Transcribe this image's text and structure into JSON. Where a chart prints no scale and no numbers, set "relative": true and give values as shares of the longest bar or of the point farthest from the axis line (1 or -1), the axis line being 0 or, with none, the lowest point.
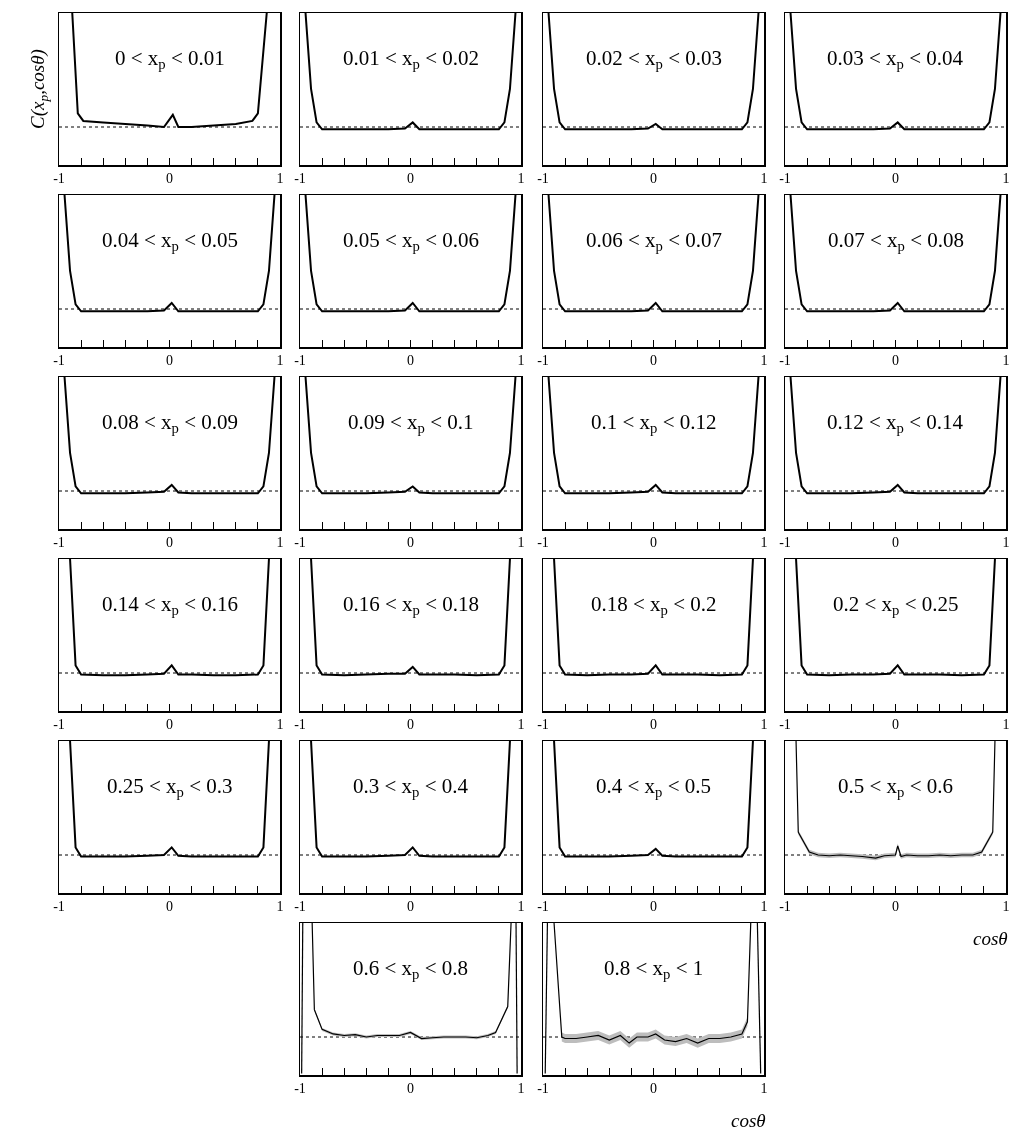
{
  "chart_data": [
    {
      "type": "line",
      "relative": true,
      "ylabel": "C(x$_{p}$,cosθ)",
      "annotations": [
        "0 < x$_{p}$ < 0.01"
      ],
      "x": [
        -0.88,
        -0.83,
        -0.78,
        -0.6,
        -0.4,
        -0.2,
        -0.05,
        0.03,
        0.08,
        0.2,
        0.4,
        0.6,
        0.75,
        0.8,
        0.88
      ],
      "series": [
        {
          "color": "#000000",
          "values": [
            1,
            0.34,
            0.29,
            0.28,
            0.27,
            0.26,
            0.25,
            0.33,
            0.25,
            0.25,
            0.26,
            0.27,
            0.29,
            0.34,
            1
          ]
        }
      ],
      "xlim": [
        -1,
        1
      ],
      "xticks": [
        -1,
        {
          "value": -0.8,
          "label": null
        },
        {
          "value": -0.6,
          "label": null
        },
        {
          "value": -0.4,
          "label": null
        },
        {
          "value": -0.2,
          "label": null
        },
        0,
        {
          "value": 0.2,
          "label": null
        },
        {
          "value": 0.4,
          "label": null
        },
        {
          "value": 0.6,
          "label": null
        },
        {
          "value": 0.8,
          "label": null
        },
        1
      ],
      "tick_labels": "x",
      "ref_lines": [
        {
          "axis": "y",
          "value": 0.25,
          "line_style": "dotted",
          "color": "#000000"
        }
      ]
    },
    {
      "type": "line",
      "relative": true,
      "annotations": [
        "0.01 < x$_{p}$ < 0.02"
      ],
      "x": [
        -0.95,
        -0.9,
        -0.85,
        -0.8,
        -0.6,
        -0.4,
        -0.2,
        -0.05,
        0.02,
        0.08,
        0.2,
        0.4,
        0.6,
        0.8,
        0.85,
        0.9,
        0.95
      ],
      "series": [
        {
          "color": "#000000",
          "values": [
            1,
            0.5,
            0.28,
            0.235,
            0.235,
            0.235,
            0.235,
            0.24,
            0.28,
            0.235,
            0.235,
            0.235,
            0.235,
            0.235,
            0.28,
            0.5,
            1
          ]
        }
      ],
      "xlim": [
        -1,
        1
      ],
      "xticks": [
        -1,
        {
          "value": -0.8,
          "label": null
        },
        {
          "value": -0.6,
          "label": null
        },
        {
          "value": -0.4,
          "label": null
        },
        {
          "value": -0.2,
          "label": null
        },
        0,
        {
          "value": 0.2,
          "label": null
        },
        {
          "value": 0.4,
          "label": null
        },
        {
          "value": 0.6,
          "label": null
        },
        {
          "value": 0.8,
          "label": null
        },
        1
      ],
      "tick_labels": "x",
      "ref_lines": [
        {
          "axis": "y",
          "value": 0.25,
          "line_style": "dotted",
          "color": "#000000"
        }
      ]
    },
    {
      "type": "line",
      "relative": true,
      "annotations": [
        "0.02 < x$_{p}$ < 0.03"
      ],
      "x": [
        -0.95,
        -0.9,
        -0.85,
        -0.8,
        -0.6,
        -0.4,
        -0.2,
        -0.05,
        0.02,
        0.08,
        0.2,
        0.4,
        0.6,
        0.8,
        0.85,
        0.9,
        0.95
      ],
      "series": [
        {
          "color": "#000000",
          "values": [
            1,
            0.5,
            0.28,
            0.235,
            0.235,
            0.235,
            0.235,
            0.24,
            0.27,
            0.235,
            0.235,
            0.235,
            0.235,
            0.235,
            0.28,
            0.5,
            1
          ]
        }
      ],
      "xlim": [
        -1,
        1
      ],
      "xticks": [
        -1,
        {
          "value": -0.8,
          "label": null
        },
        {
          "value": -0.6,
          "label": null
        },
        {
          "value": -0.4,
          "label": null
        },
        {
          "value": -0.2,
          "label": null
        },
        0,
        {
          "value": 0.2,
          "label": null
        },
        {
          "value": 0.4,
          "label": null
        },
        {
          "value": 0.6,
          "label": null
        },
        {
          "value": 0.8,
          "label": null
        },
        1
      ],
      "tick_labels": "x",
      "ref_lines": [
        {
          "axis": "y",
          "value": 0.25,
          "line_style": "dotted",
          "color": "#000000"
        }
      ]
    },
    {
      "type": "line",
      "relative": true,
      "annotations": [
        "0.03 < x$_{p}$ < 0.04"
      ],
      "x": [
        -0.95,
        -0.9,
        -0.85,
        -0.8,
        -0.6,
        -0.4,
        -0.2,
        -0.05,
        0.02,
        0.08,
        0.2,
        0.4,
        0.6,
        0.8,
        0.85,
        0.9,
        0.95
      ],
      "series": [
        {
          "color": "#000000",
          "values": [
            1,
            0.5,
            0.28,
            0.235,
            0.235,
            0.235,
            0.235,
            0.24,
            0.28,
            0.235,
            0.235,
            0.235,
            0.235,
            0.235,
            0.28,
            0.5,
            1
          ]
        }
      ],
      "xlim": [
        -1,
        1
      ],
      "xticks": [
        -1,
        {
          "value": -0.8,
          "label": null
        },
        {
          "value": -0.6,
          "label": null
        },
        {
          "value": -0.4,
          "label": null
        },
        {
          "value": -0.2,
          "label": null
        },
        0,
        {
          "value": 0.2,
          "label": null
        },
        {
          "value": 0.4,
          "label": null
        },
        {
          "value": 0.6,
          "label": null
        },
        {
          "value": 0.8,
          "label": null
        },
        1
      ],
      "tick_labels": "x",
      "ref_lines": [
        {
          "axis": "y",
          "value": 0.25,
          "line_style": "dotted",
          "color": "#000000"
        }
      ]
    },
    {
      "type": "line",
      "relative": true,
      "annotations": [
        "0.04 < x$_{p}$ < 0.05"
      ],
      "x": [
        -0.95,
        -0.9,
        -0.85,
        -0.8,
        -0.6,
        -0.4,
        -0.2,
        -0.05,
        0.02,
        0.08,
        0.2,
        0.4,
        0.6,
        0.8,
        0.85,
        0.9,
        0.95
      ],
      "series": [
        {
          "color": "#000000",
          "values": [
            1,
            0.5,
            0.28,
            0.235,
            0.235,
            0.235,
            0.235,
            0.24,
            0.29,
            0.235,
            0.235,
            0.235,
            0.235,
            0.235,
            0.28,
            0.5,
            1
          ]
        }
      ],
      "xlim": [
        -1,
        1
      ],
      "xticks": [
        -1,
        {
          "value": -0.8,
          "label": null
        },
        {
          "value": -0.6,
          "label": null
        },
        {
          "value": -0.4,
          "label": null
        },
        {
          "value": -0.2,
          "label": null
        },
        0,
        {
          "value": 0.2,
          "label": null
        },
        {
          "value": 0.4,
          "label": null
        },
        {
          "value": 0.6,
          "label": null
        },
        {
          "value": 0.8,
          "label": null
        },
        1
      ],
      "tick_labels": "x",
      "ref_lines": [
        {
          "axis": "y",
          "value": 0.25,
          "line_style": "dotted",
          "color": "#000000"
        }
      ]
    },
    {
      "type": "line",
      "relative": true,
      "annotations": [
        "0.05 < x$_{p}$ < 0.06"
      ],
      "x": [
        -0.95,
        -0.9,
        -0.85,
        -0.8,
        -0.6,
        -0.4,
        -0.2,
        -0.05,
        0.02,
        0.08,
        0.2,
        0.4,
        0.6,
        0.8,
        0.85,
        0.9,
        0.95
      ],
      "series": [
        {
          "color": "#000000",
          "values": [
            1,
            0.5,
            0.28,
            0.235,
            0.235,
            0.235,
            0.235,
            0.24,
            0.29,
            0.235,
            0.235,
            0.235,
            0.235,
            0.235,
            0.28,
            0.5,
            1
          ]
        }
      ],
      "xlim": [
        -1,
        1
      ],
      "xticks": [
        -1,
        {
          "value": -0.8,
          "label": null
        },
        {
          "value": -0.6,
          "label": null
        },
        {
          "value": -0.4,
          "label": null
        },
        {
          "value": -0.2,
          "label": null
        },
        0,
        {
          "value": 0.2,
          "label": null
        },
        {
          "value": 0.4,
          "label": null
        },
        {
          "value": 0.6,
          "label": null
        },
        {
          "value": 0.8,
          "label": null
        },
        1
      ],
      "tick_labels": "x",
      "ref_lines": [
        {
          "axis": "y",
          "value": 0.25,
          "line_style": "dotted",
          "color": "#000000"
        }
      ]
    },
    {
      "type": "line",
      "relative": true,
      "annotations": [
        "0.06 < x$_{p}$ < 0.07"
      ],
      "x": [
        -0.95,
        -0.9,
        -0.85,
        -0.8,
        -0.6,
        -0.4,
        -0.2,
        -0.05,
        0.02,
        0.08,
        0.2,
        0.4,
        0.6,
        0.8,
        0.85,
        0.9,
        0.95
      ],
      "series": [
        {
          "color": "#000000",
          "values": [
            1,
            0.5,
            0.28,
            0.235,
            0.235,
            0.235,
            0.235,
            0.24,
            0.29,
            0.235,
            0.235,
            0.235,
            0.235,
            0.235,
            0.28,
            0.5,
            1
          ]
        }
      ],
      "xlim": [
        -1,
        1
      ],
      "xticks": [
        -1,
        {
          "value": -0.8,
          "label": null
        },
        {
          "value": -0.6,
          "label": null
        },
        {
          "value": -0.4,
          "label": null
        },
        {
          "value": -0.2,
          "label": null
        },
        0,
        {
          "value": 0.2,
          "label": null
        },
        {
          "value": 0.4,
          "label": null
        },
        {
          "value": 0.6,
          "label": null
        },
        {
          "value": 0.8,
          "label": null
        },
        1
      ],
      "tick_labels": "x",
      "ref_lines": [
        {
          "axis": "y",
          "value": 0.25,
          "line_style": "dotted",
          "color": "#000000"
        }
      ]
    },
    {
      "type": "line",
      "relative": true,
      "annotations": [
        "0.07 < x$_{p}$ < 0.08"
      ],
      "x": [
        -0.95,
        -0.9,
        -0.85,
        -0.8,
        -0.6,
        -0.4,
        -0.2,
        -0.05,
        0.02,
        0.08,
        0.2,
        0.4,
        0.6,
        0.8,
        0.85,
        0.9,
        0.95
      ],
      "series": [
        {
          "color": "#000000",
          "values": [
            1,
            0.5,
            0.28,
            0.235,
            0.235,
            0.235,
            0.235,
            0.24,
            0.29,
            0.235,
            0.235,
            0.235,
            0.235,
            0.235,
            0.28,
            0.5,
            1
          ]
        }
      ],
      "xlim": [
        -1,
        1
      ],
      "xticks": [
        -1,
        {
          "value": -0.8,
          "label": null
        },
        {
          "value": -0.6,
          "label": null
        },
        {
          "value": -0.4,
          "label": null
        },
        {
          "value": -0.2,
          "label": null
        },
        0,
        {
          "value": 0.2,
          "label": null
        },
        {
          "value": 0.4,
          "label": null
        },
        {
          "value": 0.6,
          "label": null
        },
        {
          "value": 0.8,
          "label": null
        },
        1
      ],
      "tick_labels": "x",
      "ref_lines": [
        {
          "axis": "y",
          "value": 0.25,
          "line_style": "dotted",
          "color": "#000000"
        }
      ]
    },
    {
      "type": "line",
      "relative": true,
      "annotations": [
        "0.08 < x$_{p}$ < 0.09"
      ],
      "x": [
        -0.95,
        -0.9,
        -0.85,
        -0.8,
        -0.6,
        -0.4,
        -0.2,
        -0.05,
        0.02,
        0.08,
        0.2,
        0.4,
        0.6,
        0.8,
        0.85,
        0.9,
        0.95
      ],
      "series": [
        {
          "color": "#000000",
          "values": [
            1,
            0.5,
            0.28,
            0.235,
            0.235,
            0.235,
            0.24,
            0.245,
            0.29,
            0.24,
            0.235,
            0.235,
            0.235,
            0.235,
            0.28,
            0.5,
            1
          ]
        }
      ],
      "xlim": [
        -1,
        1
      ],
      "xticks": [
        -1,
        {
          "value": -0.8,
          "label": null
        },
        {
          "value": -0.6,
          "label": null
        },
        {
          "value": -0.4,
          "label": null
        },
        {
          "value": -0.2,
          "label": null
        },
        0,
        {
          "value": 0.2,
          "label": null
        },
        {
          "value": 0.4,
          "label": null
        },
        {
          "value": 0.6,
          "label": null
        },
        {
          "value": 0.8,
          "label": null
        },
        1
      ],
      "tick_labels": "x",
      "ref_lines": [
        {
          "axis": "y",
          "value": 0.25,
          "line_style": "dotted",
          "color": "#000000"
        }
      ]
    },
    {
      "type": "line",
      "relative": true,
      "annotations": [
        "0.09 < x$_{p}$ < 0.1"
      ],
      "x": [
        -0.95,
        -0.9,
        -0.85,
        -0.8,
        -0.6,
        -0.4,
        -0.2,
        -0.05,
        0.02,
        0.08,
        0.2,
        0.4,
        0.6,
        0.8,
        0.85,
        0.9,
        0.95
      ],
      "series": [
        {
          "color": "#000000",
          "values": [
            1,
            0.5,
            0.28,
            0.235,
            0.235,
            0.235,
            0.24,
            0.245,
            0.28,
            0.24,
            0.235,
            0.235,
            0.235,
            0.235,
            0.28,
            0.5,
            1
          ]
        }
      ],
      "xlim": [
        -1,
        1
      ],
      "xticks": [
        -1,
        {
          "value": -0.8,
          "label": null
        },
        {
          "value": -0.6,
          "label": null
        },
        {
          "value": -0.4,
          "label": null
        },
        {
          "value": -0.2,
          "label": null
        },
        0,
        {
          "value": 0.2,
          "label": null
        },
        {
          "value": 0.4,
          "label": null
        },
        {
          "value": 0.6,
          "label": null
        },
        {
          "value": 0.8,
          "label": null
        },
        1
      ],
      "tick_labels": "x",
      "ref_lines": [
        {
          "axis": "y",
          "value": 0.25,
          "line_style": "dotted",
          "color": "#000000"
        }
      ]
    },
    {
      "type": "line",
      "relative": true,
      "annotations": [
        "0.1 < x$_{p}$ < 0.12"
      ],
      "x": [
        -0.95,
        -0.9,
        -0.85,
        -0.8,
        -0.6,
        -0.4,
        -0.2,
        -0.05,
        0.02,
        0.08,
        0.2,
        0.4,
        0.6,
        0.8,
        0.85,
        0.9,
        0.95
      ],
      "series": [
        {
          "color": "#000000",
          "values": [
            1,
            0.5,
            0.28,
            0.235,
            0.235,
            0.235,
            0.24,
            0.245,
            0.29,
            0.24,
            0.235,
            0.235,
            0.235,
            0.235,
            0.28,
            0.5,
            1
          ]
        }
      ],
      "xlim": [
        -1,
        1
      ],
      "xticks": [
        -1,
        {
          "value": -0.8,
          "label": null
        },
        {
          "value": -0.6,
          "label": null
        },
        {
          "value": -0.4,
          "label": null
        },
        {
          "value": -0.2,
          "label": null
        },
        0,
        {
          "value": 0.2,
          "label": null
        },
        {
          "value": 0.4,
          "label": null
        },
        {
          "value": 0.6,
          "label": null
        },
        {
          "value": 0.8,
          "label": null
        },
        1
      ],
      "tick_labels": "x",
      "ref_lines": [
        {
          "axis": "y",
          "value": 0.25,
          "line_style": "dotted",
          "color": "#000000"
        }
      ]
    },
    {
      "type": "line",
      "relative": true,
      "annotations": [
        "0.12 < x$_{p}$ < 0.14"
      ],
      "x": [
        -0.95,
        -0.9,
        -0.85,
        -0.8,
        -0.6,
        -0.4,
        -0.2,
        -0.05,
        0.02,
        0.08,
        0.2,
        0.4,
        0.6,
        0.8,
        0.85,
        0.9,
        0.95
      ],
      "series": [
        {
          "color": "#000000",
          "values": [
            1,
            0.5,
            0.28,
            0.235,
            0.235,
            0.235,
            0.24,
            0.245,
            0.29,
            0.24,
            0.235,
            0.235,
            0.235,
            0.235,
            0.28,
            0.5,
            1
          ]
        }
      ],
      "xlim": [
        -1,
        1
      ],
      "xticks": [
        -1,
        {
          "value": -0.8,
          "label": null
        },
        {
          "value": -0.6,
          "label": null
        },
        {
          "value": -0.4,
          "label": null
        },
        {
          "value": -0.2,
          "label": null
        },
        0,
        {
          "value": 0.2,
          "label": null
        },
        {
          "value": 0.4,
          "label": null
        },
        {
          "value": 0.6,
          "label": null
        },
        {
          "value": 0.8,
          "label": null
        },
        1
      ],
      "tick_labels": "x",
      "ref_lines": [
        {
          "axis": "y",
          "value": 0.25,
          "line_style": "dotted",
          "color": "#000000"
        }
      ]
    },
    {
      "type": "line",
      "relative": true,
      "annotations": [
        "0.14 < x$_{p}$ < 0.16"
      ],
      "x": [
        -0.9,
        -0.85,
        -0.8,
        -0.6,
        -0.4,
        -0.2,
        -0.05,
        0.02,
        0.08,
        0.2,
        0.4,
        0.6,
        0.8,
        0.85,
        0.9
      ],
      "series": [
        {
          "color": "#000000",
          "values": [
            1,
            0.3,
            0.24,
            0.235,
            0.235,
            0.24,
            0.245,
            0.3,
            0.24,
            0.24,
            0.235,
            0.235,
            0.24,
            0.3,
            1
          ]
        }
      ],
      "xlim": [
        -1,
        1
      ],
      "xticks": [
        -1,
        {
          "value": -0.8,
          "label": null
        },
        {
          "value": -0.6,
          "label": null
        },
        {
          "value": -0.4,
          "label": null
        },
        {
          "value": -0.2,
          "label": null
        },
        0,
        {
          "value": 0.2,
          "label": null
        },
        {
          "value": 0.4,
          "label": null
        },
        {
          "value": 0.6,
          "label": null
        },
        {
          "value": 0.8,
          "label": null
        },
        1
      ],
      "tick_labels": "x",
      "ref_lines": [
        {
          "axis": "y",
          "value": 0.25,
          "line_style": "dotted",
          "color": "#000000"
        }
      ]
    },
    {
      "type": "line",
      "relative": true,
      "annotations": [
        "0.16 < x$_{p}$ < 0.18"
      ],
      "x": [
        -0.9,
        -0.85,
        -0.8,
        -0.6,
        -0.4,
        -0.2,
        -0.05,
        0.02,
        0.08,
        0.2,
        0.4,
        0.6,
        0.8,
        0.85,
        0.9
      ],
      "series": [
        {
          "color": "#000000",
          "values": [
            1,
            0.3,
            0.24,
            0.235,
            0.24,
            0.245,
            0.245,
            0.29,
            0.24,
            0.24,
            0.24,
            0.235,
            0.24,
            0.3,
            1
          ]
        }
      ],
      "xlim": [
        -1,
        1
      ],
      "xticks": [
        -1,
        {
          "value": -0.8,
          "label": null
        },
        {
          "value": -0.6,
          "label": null
        },
        {
          "value": -0.4,
          "label": null
        },
        {
          "value": -0.2,
          "label": null
        },
        0,
        {
          "value": 0.2,
          "label": null
        },
        {
          "value": 0.4,
          "label": null
        },
        {
          "value": 0.6,
          "label": null
        },
        {
          "value": 0.8,
          "label": null
        },
        1
      ],
      "tick_labels": "x",
      "ref_lines": [
        {
          "axis": "y",
          "value": 0.25,
          "line_style": "dotted",
          "color": "#000000"
        }
      ]
    },
    {
      "type": "line",
      "relative": true,
      "annotations": [
        "0.18 < x$_{p}$ < 0.2"
      ],
      "x": [
        -0.9,
        -0.85,
        -0.8,
        -0.6,
        -0.4,
        -0.2,
        -0.05,
        0.02,
        0.08,
        0.2,
        0.4,
        0.6,
        0.8,
        0.85,
        0.9
      ],
      "series": [
        {
          "color": "#000000",
          "values": [
            1,
            0.3,
            0.24,
            0.235,
            0.24,
            0.24,
            0.245,
            0.3,
            0.24,
            0.24,
            0.24,
            0.235,
            0.24,
            0.3,
            1
          ]
        }
      ],
      "xlim": [
        -1,
        1
      ],
      "xticks": [
        -1,
        {
          "value": -0.8,
          "label": null
        },
        {
          "value": -0.6,
          "label": null
        },
        {
          "value": -0.4,
          "label": null
        },
        {
          "value": -0.2,
          "label": null
        },
        0,
        {
          "value": 0.2,
          "label": null
        },
        {
          "value": 0.4,
          "label": null
        },
        {
          "value": 0.6,
          "label": null
        },
        {
          "value": 0.8,
          "label": null
        },
        1
      ],
      "tick_labels": "x",
      "ref_lines": [
        {
          "axis": "y",
          "value": 0.25,
          "line_style": "dotted",
          "color": "#000000"
        }
      ]
    },
    {
      "type": "line",
      "relative": true,
      "annotations": [
        "0.2 < x$_{p}$ < 0.25"
      ],
      "x": [
        -0.9,
        -0.85,
        -0.8,
        -0.6,
        -0.4,
        -0.2,
        -0.05,
        0.02,
        0.08,
        0.2,
        0.4,
        0.6,
        0.8,
        0.85,
        0.9
      ],
      "series": [
        {
          "color": "#000000",
          "values": [
            1,
            0.3,
            0.24,
            0.235,
            0.24,
            0.24,
            0.245,
            0.3,
            0.24,
            0.24,
            0.24,
            0.235,
            0.24,
            0.3,
            1
          ]
        }
      ],
      "xlim": [
        -1,
        1
      ],
      "xticks": [
        -1,
        {
          "value": -0.8,
          "label": null
        },
        {
          "value": -0.6,
          "label": null
        },
        {
          "value": -0.4,
          "label": null
        },
        {
          "value": -0.2,
          "label": null
        },
        0,
        {
          "value": 0.2,
          "label": null
        },
        {
          "value": 0.4,
          "label": null
        },
        {
          "value": 0.6,
          "label": null
        },
        {
          "value": 0.8,
          "label": null
        },
        1
      ],
      "tick_labels": "x",
      "ref_lines": [
        {
          "axis": "y",
          "value": 0.25,
          "line_style": "dotted",
          "color": "#000000"
        }
      ]
    },
    {
      "type": "line",
      "relative": true,
      "annotations": [
        "0.25 < x$_{p}$ < 0.3"
      ],
      "x": [
        -0.9,
        -0.85,
        -0.8,
        -0.6,
        -0.4,
        -0.2,
        -0.05,
        0.02,
        0.08,
        0.2,
        0.4,
        0.6,
        0.8,
        0.85,
        0.9
      ],
      "series": [
        {
          "color": "#000000",
          "values": [
            1,
            0.3,
            0.24,
            0.24,
            0.24,
            0.245,
            0.25,
            0.3,
            0.245,
            0.24,
            0.24,
            0.24,
            0.24,
            0.3,
            1
          ]
        }
      ],
      "xlim": [
        -1,
        1
      ],
      "xticks": [
        -1,
        {
          "value": -0.8,
          "label": null
        },
        {
          "value": -0.6,
          "label": null
        },
        {
          "value": -0.4,
          "label": null
        },
        {
          "value": -0.2,
          "label": null
        },
        0,
        {
          "value": 0.2,
          "label": null
        },
        {
          "value": 0.4,
          "label": null
        },
        {
          "value": 0.6,
          "label": null
        },
        {
          "value": 0.8,
          "label": null
        },
        1
      ],
      "tick_labels": "x",
      "ref_lines": [
        {
          "axis": "y",
          "value": 0.25,
          "line_style": "dotted",
          "color": "#000000"
        }
      ]
    },
    {
      "type": "line",
      "relative": true,
      "annotations": [
        "0.3 < x$_{p}$ < 0.4"
      ],
      "x": [
        -0.9,
        -0.85,
        -0.8,
        -0.6,
        -0.4,
        -0.2,
        -0.05,
        0.02,
        0.08,
        0.2,
        0.4,
        0.6,
        0.8,
        0.85,
        0.9
      ],
      "series": [
        {
          "color": "#000000",
          "values": [
            1,
            0.3,
            0.24,
            0.24,
            0.24,
            0.245,
            0.25,
            0.3,
            0.245,
            0.24,
            0.24,
            0.24,
            0.24,
            0.3,
            1
          ]
        }
      ],
      "xlim": [
        -1,
        1
      ],
      "xticks": [
        -1,
        {
          "value": -0.8,
          "label": null
        },
        {
          "value": -0.6,
          "label": null
        },
        {
          "value": -0.4,
          "label": null
        },
        {
          "value": -0.2,
          "label": null
        },
        0,
        {
          "value": 0.2,
          "label": null
        },
        {
          "value": 0.4,
          "label": null
        },
        {
          "value": 0.6,
          "label": null
        },
        {
          "value": 0.8,
          "label": null
        },
        1
      ],
      "tick_labels": "x",
      "ref_lines": [
        {
          "axis": "y",
          "value": 0.25,
          "line_style": "dotted",
          "color": "#000000"
        }
      ]
    },
    {
      "type": "line",
      "relative": true,
      "annotations": [
        "0.4 < x$_{p}$ < 0.5"
      ],
      "x": [
        -0.9,
        -0.85,
        -0.8,
        -0.6,
        -0.4,
        -0.2,
        -0.05,
        0.02,
        0.08,
        0.2,
        0.4,
        0.6,
        0.8,
        0.85,
        0.9
      ],
      "series": [
        {
          "color": "#000000",
          "values": [
            1,
            0.3,
            0.24,
            0.24,
            0.24,
            0.245,
            0.25,
            0.29,
            0.245,
            0.24,
            0.24,
            0.24,
            0.24,
            0.3,
            1
          ]
        }
      ],
      "xlim": [
        -1,
        1
      ],
      "xticks": [
        -1,
        {
          "value": -0.8,
          "label": null
        },
        {
          "value": -0.6,
          "label": null
        },
        {
          "value": -0.4,
          "label": null
        },
        {
          "value": -0.2,
          "label": null
        },
        0,
        {
          "value": 0.2,
          "label": null
        },
        {
          "value": 0.4,
          "label": null
        },
        {
          "value": 0.6,
          "label": null
        },
        {
          "value": 0.8,
          "label": null
        },
        1
      ],
      "tick_labels": "x",
      "ref_lines": [
        {
          "axis": "y",
          "value": 0.25,
          "line_style": "dotted",
          "color": "#000000"
        }
      ]
    },
    {
      "type": "line",
      "relative": true,
      "xlabel": "cosθ",
      "annotations": [
        "0.5 < x$_{p}$ < 0.6"
      ],
      "x": [
        -0.9,
        -0.88,
        -0.78,
        -0.7,
        -0.6,
        -0.5,
        -0.4,
        -0.3,
        -0.18,
        -0.1,
        0,
        0.02,
        0.05,
        0.1,
        0.2,
        0.3,
        0.4,
        0.5,
        0.6,
        0.7,
        0.78,
        0.88,
        0.9
      ],
      "series": [
        {
          "color": "#000000",
          "values": [
            1,
            0.4,
            0.27,
            0.25,
            0.245,
            0.25,
            0.245,
            0.24,
            0.23,
            0.245,
            0.25,
            0.31,
            0.24,
            0.25,
            0.245,
            0.245,
            0.25,
            0.245,
            0.25,
            0.25,
            0.27,
            0.4,
            1
          ],
          "lower": [
            null,
            0.385,
            0.255,
            0.235,
            0.23,
            0.235,
            0.23,
            0.225,
            0.215,
            0.23,
            0.235,
            0.295,
            0.225,
            0.235,
            0.23,
            0.23,
            0.235,
            0.23,
            0.235,
            0.235,
            0.255,
            0.385,
            null
          ],
          "upper": [
            null,
            0.415,
            0.285,
            0.265,
            0.26,
            0.265,
            0.26,
            0.255,
            0.245,
            0.26,
            0.265,
            0.325,
            0.255,
            0.265,
            0.26,
            0.26,
            0.265,
            0.26,
            0.265,
            0.265,
            0.285,
            0.415,
            null
          ]
        }
      ],
      "xlim": [
        -1,
        1
      ],
      "xticks": [
        -1,
        {
          "value": -0.8,
          "label": null
        },
        {
          "value": -0.6,
          "label": null
        },
        {
          "value": -0.4,
          "label": null
        },
        {
          "value": -0.2,
          "label": null
        },
        0,
        {
          "value": 0.2,
          "label": null
        },
        {
          "value": 0.4,
          "label": null
        },
        {
          "value": 0.6,
          "label": null
        },
        {
          "value": 0.8,
          "label": null
        },
        1
      ],
      "tick_labels": "x",
      "ref_lines": [
        {
          "axis": "y",
          "value": 0.25,
          "line_style": "dotted",
          "color": "#000000"
        }
      ]
    },
    {
      "type": "line",
      "relative": true,
      "annotations": [
        "0.6 < x$_{p}$ < 0.8"
      ],
      "x": [
        -0.985,
        -0.975,
        -0.94,
        -0.89,
        -0.87,
        -0.8,
        -0.7,
        -0.6,
        -0.5,
        -0.4,
        -0.3,
        -0.2,
        -0.1,
        0,
        0.1,
        0.2,
        0.3,
        0.4,
        0.5,
        0.6,
        0.7,
        0.77,
        0.88,
        0.91,
        0.94,
        0.955,
        0.965
      ],
      "series": [
        {
          "color": "#000000",
          "values": [
            0.01,
            1,
            null,
            1,
            0.43,
            0.3,
            0.27,
            0.26,
            0.265,
            0.25,
            0.26,
            0.26,
            0.26,
            0.28,
            0.24,
            0.245,
            0.25,
            0.25,
            0.25,
            0.245,
            0.26,
            0.28,
            0.45,
            1,
            null,
            1,
            0.01
          ],
          "lower": [
            null,
            null,
            null,
            null,
            0.42,
            0.29,
            0.26,
            0.25,
            0.255,
            0.24,
            0.25,
            0.25,
            0.25,
            0.27,
            0.23,
            0.235,
            0.24,
            0.24,
            0.24,
            0.235,
            0.25,
            0.27,
            0.44,
            null,
            null,
            null,
            null
          ],
          "upper": [
            null,
            null,
            null,
            null,
            0.44,
            0.31,
            0.28,
            0.27,
            0.275,
            0.26,
            0.27,
            0.27,
            0.27,
            0.29,
            0.25,
            0.255,
            0.26,
            0.26,
            0.26,
            0.255,
            0.27,
            0.29,
            0.46,
            null,
            null,
            null,
            null
          ]
        }
      ],
      "xlim": [
        -1,
        1
      ],
      "xticks": [
        -1,
        {
          "value": -0.8,
          "label": null
        },
        {
          "value": -0.6,
          "label": null
        },
        {
          "value": -0.4,
          "label": null
        },
        {
          "value": -0.2,
          "label": null
        },
        0,
        {
          "value": 0.2,
          "label": null
        },
        {
          "value": 0.4,
          "label": null
        },
        {
          "value": 0.6,
          "label": null
        },
        {
          "value": 0.8,
          "label": null
        },
        1
      ],
      "tick_labels": "x",
      "ref_lines": [
        {
          "axis": "y",
          "value": 0.25,
          "line_style": "dotted",
          "color": "#000000"
        }
      ]
    },
    {
      "type": "line",
      "relative": true,
      "xlabel": "cosθ",
      "annotations": [
        "0.8 < x$_{p}$ < 1"
      ],
      "x": [
        -0.98,
        -0.96,
        -0.93,
        -0.9,
        -0.83,
        -0.8,
        -0.7,
        -0.6,
        -0.5,
        -0.4,
        -0.3,
        -0.22,
        -0.15,
        -0.05,
        0.02,
        0.1,
        0.2,
        0.3,
        0.4,
        0.5,
        0.6,
        0.7,
        0.8,
        0.85,
        0.88,
        0.91,
        0.94,
        0.97
      ],
      "series": [
        {
          "color": "#000000",
          "values": [
            0.01,
            1,
            null,
            1,
            0.25,
            0.24,
            0.24,
            0.25,
            0.26,
            0.23,
            0.26,
            0.21,
            0.25,
            0.25,
            0.27,
            0.23,
            0.22,
            0.24,
            0.21,
            0.24,
            0.24,
            0.25,
            0.27,
            0.35,
            1,
            null,
            1,
            0.01
          ],
          "lower": [
            null,
            null,
            null,
            null,
            0.22,
            0.21,
            0.21,
            0.22,
            0.23,
            0.2,
            0.23,
            0.18,
            0.22,
            0.22,
            0.24,
            0.2,
            0.19,
            0.21,
            0.18,
            0.21,
            0.21,
            0.22,
            0.24,
            0.32,
            null,
            null,
            null,
            null
          ],
          "upper": [
            null,
            null,
            null,
            null,
            0.28,
            0.27,
            0.27,
            0.28,
            0.29,
            0.26,
            0.29,
            0.24,
            0.28,
            0.28,
            0.3,
            0.26,
            0.25,
            0.27,
            0.24,
            0.27,
            0.27,
            0.28,
            0.3,
            0.38,
            null,
            null,
            null,
            null
          ]
        }
      ],
      "xlim": [
        -1,
        1
      ],
      "xticks": [
        -1,
        {
          "value": -0.8,
          "label": null
        },
        {
          "value": -0.6,
          "label": null
        },
        {
          "value": -0.4,
          "label": null
        },
        {
          "value": -0.2,
          "label": null
        },
        0,
        {
          "value": 0.2,
          "label": null
        },
        {
          "value": 0.4,
          "label": null
        },
        {
          "value": 0.6,
          "label": null
        },
        {
          "value": 0.8,
          "label": null
        },
        1
      ],
      "tick_labels": "x",
      "ref_lines": [
        {
          "axis": "y",
          "value": 0.25,
          "line_style": "dotted",
          "color": "#000000"
        }
      ]
    }
  ]
}
